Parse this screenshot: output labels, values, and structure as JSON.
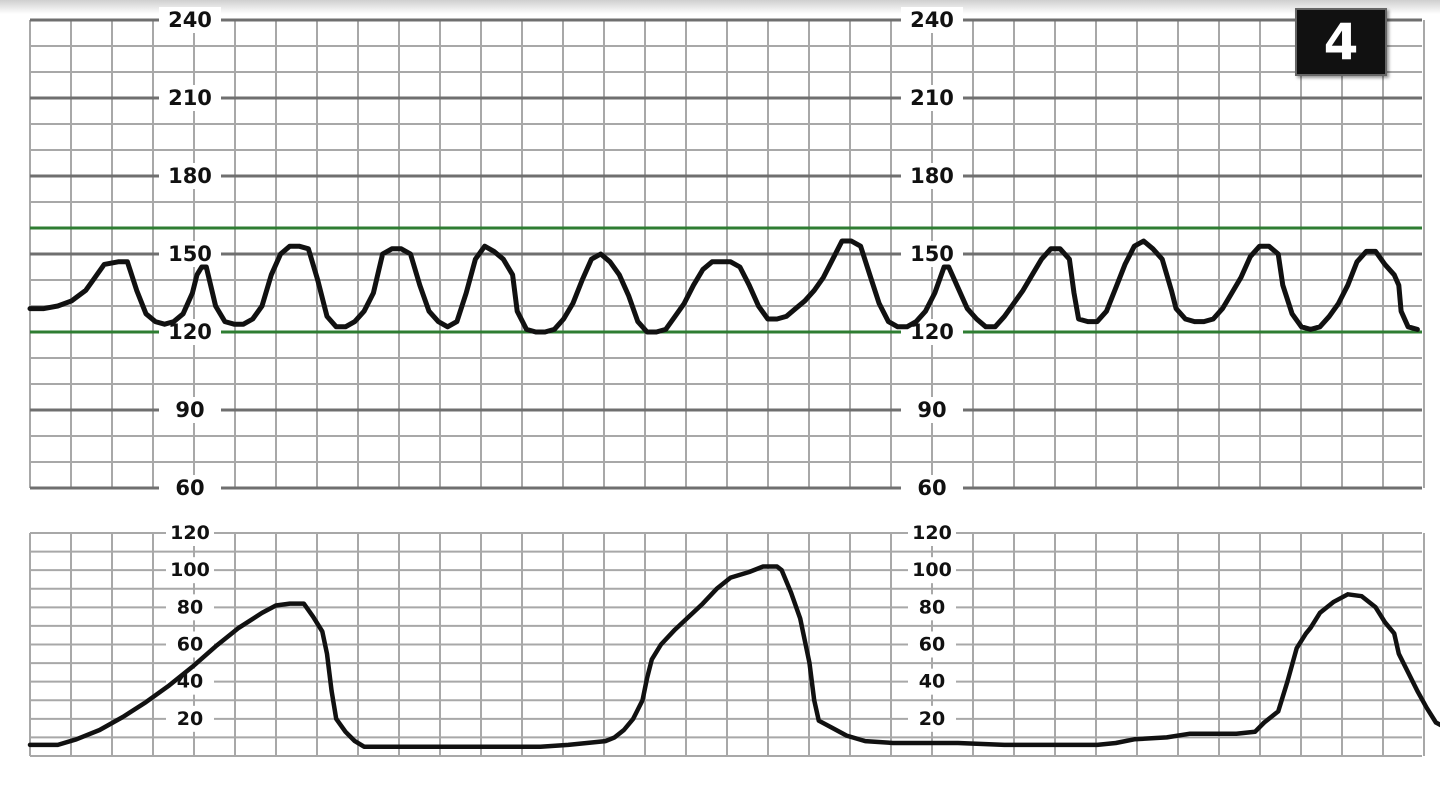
{
  "badge": {
    "label": "4"
  },
  "colors": {
    "trace": "#111111",
    "grid": "#a8a8a8",
    "gridMajor": "#6f6f6f",
    "limit": "#2e7d32",
    "background": "#ffffff"
  },
  "chart_data": [
    {
      "type": "line",
      "panel": "fetal-heart-rate",
      "ylim": [
        60,
        240
      ],
      "y_ticks": [
        60,
        90,
        120,
        150,
        180,
        210,
        240
      ],
      "reference_lines": [
        120,
        160
      ],
      "grid": true,
      "series": [
        {
          "points": [
            [
              0,
              129
            ],
            [
              3,
              129
            ],
            [
              6,
              130
            ],
            [
              9,
              132
            ],
            [
              12,
              136
            ],
            [
              14,
              141
            ],
            [
              16,
              146
            ],
            [
              19,
              147
            ],
            [
              21,
              147
            ],
            [
              23,
              136
            ],
            [
              25,
              127
            ],
            [
              27,
              124
            ],
            [
              29,
              123
            ],
            [
              31,
              124
            ],
            [
              33,
              127
            ],
            [
              35,
              135
            ],
            [
              36,
              142
            ],
            [
              37,
              145
            ],
            [
              38,
              145
            ],
            [
              40,
              130
            ],
            [
              42,
              124
            ],
            [
              44,
              123
            ],
            [
              46,
              123
            ],
            [
              48,
              125
            ],
            [
              50,
              130
            ],
            [
              52,
              142
            ],
            [
              54,
              150
            ],
            [
              56,
              153
            ],
            [
              58,
              153
            ],
            [
              60,
              152
            ],
            [
              62,
              140
            ],
            [
              64,
              126
            ],
            [
              66,
              122
            ],
            [
              68,
              122
            ],
            [
              70,
              124
            ],
            [
              72,
              128
            ],
            [
              74,
              135
            ],
            [
              76,
              150
            ],
            [
              78,
              152
            ],
            [
              80,
              152
            ],
            [
              82,
              150
            ],
            [
              84,
              138
            ],
            [
              86,
              128
            ],
            [
              88,
              124
            ],
            [
              90,
              122
            ],
            [
              92,
              124
            ],
            [
              94,
              135
            ],
            [
              96,
              148
            ],
            [
              98,
              153
            ],
            [
              100,
              151
            ],
            [
              102,
              148
            ],
            [
              104,
              142
            ],
            [
              105,
              128
            ],
            [
              107,
              121
            ],
            [
              109,
              120
            ],
            [
              111,
              120
            ],
            [
              113,
              121
            ],
            [
              115,
              125
            ],
            [
              117,
              131
            ],
            [
              119,
              140
            ],
            [
              121,
              148
            ],
            [
              123,
              150
            ],
            [
              125,
              147
            ],
            [
              127,
              142
            ],
            [
              129,
              134
            ],
            [
              131,
              124
            ],
            [
              133,
              120
            ],
            [
              135,
              120
            ],
            [
              137,
              121
            ],
            [
              139,
              126
            ],
            [
              141,
              131
            ],
            [
              143,
              138
            ],
            [
              145,
              144
            ],
            [
              147,
              147
            ],
            [
              149,
              147
            ],
            [
              151,
              147
            ],
            [
              153,
              145
            ],
            [
              155,
              138
            ],
            [
              157,
              130
            ],
            [
              159,
              125
            ],
            [
              161,
              125
            ],
            [
              163,
              126
            ],
            [
              165,
              129
            ],
            [
              167,
              132
            ],
            [
              169,
              136
            ],
            [
              171,
              141
            ],
            [
              173,
              148
            ],
            [
              175,
              155
            ],
            [
              177,
              155
            ],
            [
              179,
              153
            ],
            [
              181,
              142
            ],
            [
              183,
              131
            ],
            [
              185,
              124
            ],
            [
              187,
              122
            ],
            [
              189,
              122
            ],
            [
              191,
              124
            ],
            [
              193,
              128
            ],
            [
              195,
              135
            ],
            [
              197,
              145
            ],
            [
              198,
              145
            ],
            [
              200,
              137
            ],
            [
              202,
              129
            ],
            [
              204,
              125
            ],
            [
              206,
              122
            ],
            [
              208,
              122
            ],
            [
              210,
              126
            ],
            [
              212,
              131
            ],
            [
              214,
              136
            ],
            [
              216,
              142
            ],
            [
              218,
              148
            ],
            [
              220,
              152
            ],
            [
              222,
              152
            ],
            [
              224,
              148
            ],
            [
              225,
              135
            ],
            [
              226,
              125
            ],
            [
              228,
              124
            ],
            [
              230,
              124
            ],
            [
              232,
              128
            ],
            [
              234,
              137
            ],
            [
              236,
              146
            ],
            [
              238,
              153
            ],
            [
              240,
              155
            ],
            [
              242,
              152
            ],
            [
              244,
              148
            ],
            [
              246,
              136
            ],
            [
              247,
              129
            ],
            [
              249,
              125
            ],
            [
              251,
              124
            ],
            [
              253,
              124
            ],
            [
              255,
              125
            ],
            [
              257,
              129
            ],
            [
              259,
              135
            ],
            [
              261,
              141
            ],
            [
              263,
              149
            ],
            [
              265,
              153
            ],
            [
              267,
              153
            ],
            [
              269,
              150
            ],
            [
              270,
              138
            ],
            [
              272,
              127
            ],
            [
              274,
              122
            ],
            [
              276,
              121
            ],
            [
              278,
              122
            ],
            [
              280,
              126
            ],
            [
              282,
              131
            ],
            [
              284,
              138
            ],
            [
              286,
              147
            ],
            [
              288,
              151
            ],
            [
              290,
              151
            ],
            [
              292,
              146
            ],
            [
              294,
              142
            ],
            [
              295,
              138
            ],
            [
              295.5,
              128
            ],
            [
              297,
              122
            ],
            [
              299,
              121
            ]
          ]
        }
      ]
    },
    {
      "type": "line",
      "panel": "uterine-contractions",
      "ylim": [
        0,
        120
      ],
      "y_ticks": [
        20,
        40,
        60,
        80,
        100,
        120
      ],
      "grid": true,
      "series": [
        {
          "points": [
            [
              0,
              6
            ],
            [
              6,
              6
            ],
            [
              10,
              9
            ],
            [
              15,
              14
            ],
            [
              20,
              21
            ],
            [
              25,
              29
            ],
            [
              30,
              38
            ],
            [
              35,
              48
            ],
            [
              40,
              59
            ],
            [
              45,
              69
            ],
            [
              50,
              77
            ],
            [
              53,
              81
            ],
            [
              56,
              82
            ],
            [
              59,
              82
            ],
            [
              61,
              75
            ],
            [
              63,
              67
            ],
            [
              64,
              55
            ],
            [
              65,
              35
            ],
            [
              66,
              20
            ],
            [
              68,
              13
            ],
            [
              70,
              8
            ],
            [
              72,
              5
            ],
            [
              80,
              5
            ],
            [
              100,
              5
            ],
            [
              110,
              5
            ],
            [
              116,
              6
            ],
            [
              120,
              7
            ],
            [
              124,
              8
            ],
            [
              126,
              10
            ],
            [
              128,
              14
            ],
            [
              130,
              20
            ],
            [
              132,
              30
            ],
            [
              133,
              42
            ],
            [
              134,
              52
            ],
            [
              136,
              60
            ],
            [
              139,
              68
            ],
            [
              142,
              75
            ],
            [
              145,
              82
            ],
            [
              148,
              90
            ],
            [
              151,
              96
            ],
            [
              155,
              99
            ],
            [
              158,
              102
            ],
            [
              161,
              102
            ],
            [
              162,
              100
            ],
            [
              164,
              88
            ],
            [
              166,
              74
            ],
            [
              168,
              50
            ],
            [
              169,
              30
            ],
            [
              170,
              19
            ],
            [
              173,
              15
            ],
            [
              176,
              11
            ],
            [
              180,
              8
            ],
            [
              186,
              7
            ],
            [
              195,
              7
            ],
            [
              200,
              7
            ],
            [
              210,
              6
            ],
            [
              220,
              6
            ],
            [
              230,
              6
            ],
            [
              234,
              7
            ],
            [
              238,
              9
            ],
            [
              245,
              10
            ],
            [
              250,
              12
            ],
            [
              255,
              12
            ],
            [
              260,
              12
            ],
            [
              264,
              13
            ],
            [
              266,
              18
            ],
            [
              269,
              24
            ],
            [
              271,
              40
            ],
            [
              273,
              58
            ],
            [
              275,
              66
            ],
            [
              276,
              69
            ],
            [
              278,
              77
            ],
            [
              281,
              83
            ],
            [
              284,
              87
            ],
            [
              287,
              86
            ],
            [
              290,
              80
            ],
            [
              292,
              72
            ],
            [
              294,
              66
            ],
            [
              295,
              55
            ],
            [
              297,
              45
            ],
            [
              299,
              35
            ],
            [
              301,
              26
            ],
            [
              303,
              18
            ],
            [
              306,
              14
            ],
            [
              311,
              12
            ]
          ]
        }
      ]
    }
  ]
}
